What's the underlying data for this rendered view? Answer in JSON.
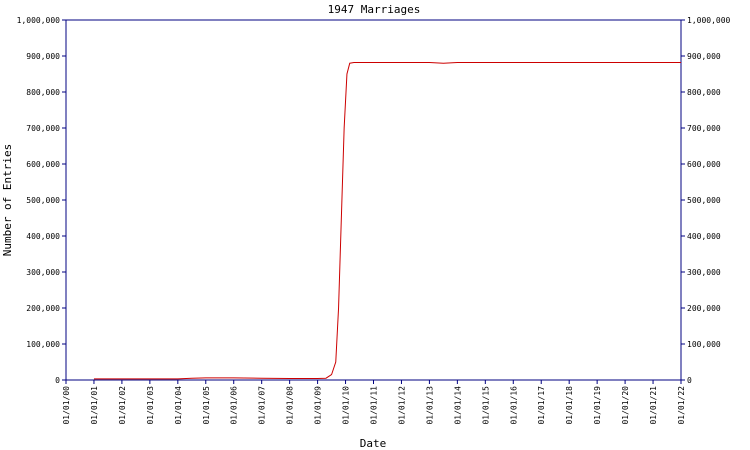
{
  "chart_data": {
    "type": "line",
    "title": "1947 Marriages",
    "x_label": "Date",
    "y_label": "Number of Entries",
    "xlim": [
      0,
      22
    ],
    "xticks": [
      {
        "value": 0,
        "label": "01/01/00"
      },
      {
        "value": 1,
        "label": "01/01/01"
      },
      {
        "value": 2,
        "label": "01/01/02"
      },
      {
        "value": 3,
        "label": "01/01/03"
      },
      {
        "value": 4,
        "label": "01/01/04"
      },
      {
        "value": 5,
        "label": "01/01/05"
      },
      {
        "value": 6,
        "label": "01/01/06"
      },
      {
        "value": 7,
        "label": "01/01/07"
      },
      {
        "value": 8,
        "label": "01/01/08"
      },
      {
        "value": 9,
        "label": "01/01/09"
      },
      {
        "value": 10,
        "label": "01/01/10"
      },
      {
        "value": 11,
        "label": "01/01/11"
      },
      {
        "value": 12,
        "label": "01/01/12"
      },
      {
        "value": 13,
        "label": "01/01/13"
      },
      {
        "value": 14,
        "label": "01/01/14"
      },
      {
        "value": 15,
        "label": "01/01/15"
      },
      {
        "value": 16,
        "label": "01/01/16"
      },
      {
        "value": 17,
        "label": "01/01/17"
      },
      {
        "value": 18,
        "label": "01/01/18"
      },
      {
        "value": 19,
        "label": "01/01/19"
      },
      {
        "value": 20,
        "label": "01/01/20"
      },
      {
        "value": 21,
        "label": "01/01/21"
      },
      {
        "value": 22,
        "label": "01/01/22"
      }
    ],
    "ylim": [
      0,
      1000000
    ],
    "yticks": [
      0,
      {
        "value": 100000,
        "label": "100,000"
      },
      {
        "value": 200000,
        "label": "200,000"
      },
      {
        "value": 300000,
        "label": "300,000"
      },
      {
        "value": 400000,
        "label": "400,000"
      },
      {
        "value": 500000,
        "label": "500,000"
      },
      {
        "value": 600000,
        "label": "600,000"
      },
      {
        "value": 700000,
        "label": "700,000"
      },
      {
        "value": 800000,
        "label": "800,000"
      },
      {
        "value": 900000,
        "label": "900,000"
      },
      {
        "value": 1000000,
        "label": "1,000,000"
      }
    ],
    "y2lim": [
      0,
      1000000
    ],
    "y2ticks": [
      0,
      {
        "value": 100000,
        "label": "100,000"
      },
      {
        "value": 200000,
        "label": "200,000"
      },
      {
        "value": 300000,
        "label": "300,000"
      },
      {
        "value": 400000,
        "label": "400,000"
      },
      {
        "value": 500000,
        "label": "500,000"
      },
      {
        "value": 600000,
        "label": "600,000"
      },
      {
        "value": 700000,
        "label": "700,000"
      },
      {
        "value": 800000,
        "label": "800,000"
      },
      {
        "value": 900000,
        "label": "900,000"
      },
      {
        "value": 1000000,
        "label": "1,000,000"
      }
    ],
    "axis_color": "#000080",
    "series": [
      {
        "color": "#cc0000",
        "x": [
          1,
          2,
          3,
          4,
          4.5,
          5,
          6,
          7,
          8,
          9,
          9.3,
          9.5,
          9.65,
          9.75,
          9.85,
          9.95,
          10.05,
          10.15,
          10.3,
          11,
          12,
          13,
          13.5,
          14,
          15,
          16,
          17,
          18,
          19,
          20,
          21,
          22
        ],
        "values": [
          3000,
          3000,
          3000,
          3000,
          5000,
          6000,
          6000,
          5000,
          4000,
          4000,
          5000,
          15000,
          50000,
          200000,
          450000,
          700000,
          850000,
          880000,
          882000,
          882000,
          882000,
          882000,
          880000,
          882000,
          882000,
          882000,
          882000,
          882000,
          882000,
          882000,
          882000,
          882000
        ]
      }
    ]
  }
}
